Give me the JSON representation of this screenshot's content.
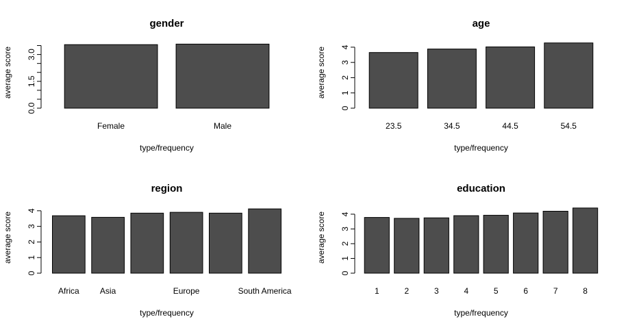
{
  "chart_data": [
    {
      "type": "bar",
      "title": "gender",
      "xlabel": "type/frequency",
      "ylabel": "average score",
      "categories": [
        "Female",
        "Male"
      ],
      "category_labels": [
        "Female",
        "Male"
      ],
      "values": [
        3.55,
        3.58
      ],
      "ylim": [
        0,
        3.75
      ],
      "yticks": [
        0,
        0.5,
        1,
        1.5,
        2,
        2.5,
        3,
        3.5
      ],
      "yticklabels": [
        "0.0",
        "",
        "",
        "1.5",
        "",
        "",
        "3.0",
        ""
      ]
    },
    {
      "type": "bar",
      "title": "age",
      "xlabel": "type/frequency",
      "ylabel": "average score",
      "categories": [
        "23.5",
        "34.5",
        "44.5",
        "54.5"
      ],
      "category_labels": [
        "23.5",
        "34.5",
        "44.5",
        "54.5"
      ],
      "values": [
        3.65,
        3.88,
        4.02,
        4.28
      ],
      "ylim": [
        0,
        4.4
      ],
      "yticks": [
        0,
        1,
        2,
        3,
        4
      ],
      "yticklabels": [
        "0",
        "1",
        "2",
        "3",
        "4"
      ]
    },
    {
      "type": "bar",
      "title": "region",
      "xlabel": "type/frequency",
      "ylabel": "average score",
      "categories": [
        "Africa",
        "Asia",
        "",
        "Europe",
        "",
        "South America"
      ],
      "category_labels": [
        "Africa",
        "Asia",
        "",
        "Europe",
        "",
        "South America"
      ],
      "values": [
        3.68,
        3.58,
        3.85,
        3.9,
        3.85,
        4.12
      ],
      "ylim": [
        0,
        4.3
      ],
      "yticks": [
        0,
        1,
        2,
        3,
        4
      ],
      "yticklabels": [
        "0",
        "1",
        "2",
        "3",
        "4"
      ]
    },
    {
      "type": "bar",
      "title": "education",
      "xlabel": "type/frequency",
      "ylabel": "average score",
      "categories": [
        "1",
        "2",
        "3",
        "4",
        "5",
        "6",
        "7",
        "8"
      ],
      "category_labels": [
        "1",
        "2",
        "3",
        "4",
        "5",
        "6",
        "7",
        "8"
      ],
      "values": [
        3.78,
        3.72,
        3.75,
        3.9,
        3.93,
        4.08,
        4.2,
        4.42
      ],
      "ylim": [
        0,
        4.55
      ],
      "yticks": [
        0,
        1,
        2,
        3,
        4
      ],
      "yticklabels": [
        "0",
        "1",
        "2",
        "3",
        "4"
      ]
    }
  ]
}
